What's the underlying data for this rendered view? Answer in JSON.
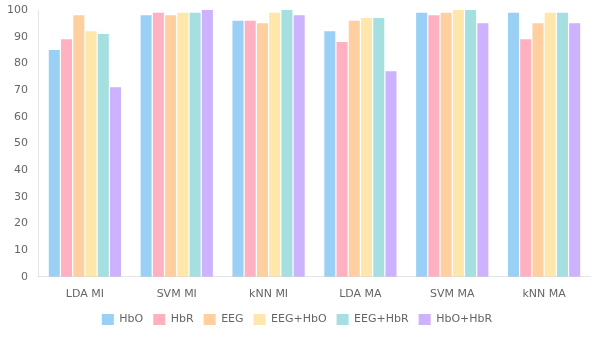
{
  "chart_data": {
    "type": "bar",
    "categories": [
      "LDA MI",
      "SVM MI",
      "kNN MI",
      "LDA MA",
      "SVM MA",
      "kNN MA"
    ],
    "series": [
      {
        "name": "HbO",
        "values": [
          85,
          98,
          96,
          92,
          99,
          99
        ]
      },
      {
        "name": "HbR",
        "values": [
          89,
          99,
          96,
          88,
          98,
          89
        ]
      },
      {
        "name": "EEG",
        "values": [
          98,
          98,
          95,
          96,
          99,
          95
        ]
      },
      {
        "name": "EEG+HbO",
        "values": [
          92,
          99,
          99,
          97,
          100,
          99
        ]
      },
      {
        "name": "EEG+HbR",
        "values": [
          91,
          99,
          100,
          97,
          100,
          99
        ]
      },
      {
        "name": "HbO+HbR",
        "values": [
          71,
          100,
          98,
          77,
          95,
          95
        ]
      }
    ],
    "ylim": [
      0,
      100
    ],
    "yticks": [
      0,
      10,
      20,
      30,
      40,
      50,
      60,
      70,
      80,
      90,
      100
    ],
    "grid": false,
    "legend": "bottom"
  }
}
